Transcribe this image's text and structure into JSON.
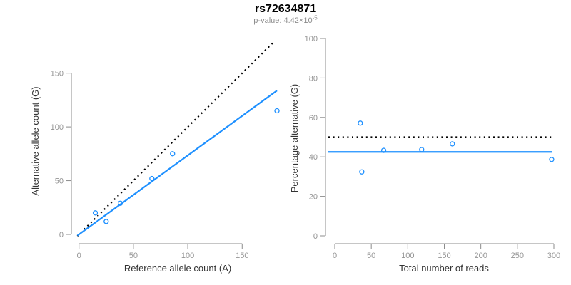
{
  "header": {
    "title": "rs72634871",
    "p_value_text": "p-value: 4.42×10",
    "p_value_exponent": "-5"
  },
  "colors": {
    "accent_blue": "#1E90FF",
    "dotted_black": "#000000",
    "axis_gray": "#8c8c8c",
    "tick_label_gray": "#949494"
  },
  "chart_data": [
    {
      "type": "scatter",
      "name": "allele-counts-scatter",
      "xlabel": "Reference allele count (A)",
      "ylabel": "Alternative allele count (G)",
      "xticks": [
        0,
        50,
        100,
        150
      ],
      "yticks": [
        0,
        50,
        100,
        150
      ],
      "xlim": [
        0,
        150
      ],
      "ylim": [
        0,
        150
      ],
      "grid": false,
      "points": [
        [
          15,
          20
        ],
        [
          25,
          12
        ],
        [
          38,
          29
        ],
        [
          67,
          52
        ],
        [
          86,
          75
        ],
        [
          182,
          115
        ]
      ],
      "lines": [
        {
          "label": "identity-line",
          "style": "dotted",
          "color": "#000000",
          "slope": 1,
          "intercept": 0
        },
        {
          "label": "fitted-line",
          "style": "solid",
          "color": "#1E90FF",
          "slope": 0.735,
          "intercept": 0
        }
      ]
    },
    {
      "type": "scatter",
      "name": "percentage-vs-reads-scatter",
      "xlabel": "Total number of reads",
      "ylabel": "Percentage alternative (G)",
      "xticks": [
        0,
        50,
        100,
        150,
        200,
        250,
        300
      ],
      "yticks": [
        0,
        20,
        40,
        60,
        80,
        100
      ],
      "xlim": [
        0,
        300
      ],
      "ylim": [
        0,
        100
      ],
      "grid": false,
      "points": [
        [
          35,
          57.1
        ],
        [
          37,
          32.4
        ],
        [
          67,
          43.3
        ],
        [
          119,
          43.7
        ],
        [
          161,
          46.6
        ],
        [
          297,
          38.7
        ]
      ],
      "lines": [
        {
          "label": "expected-50pct-line",
          "style": "dotted",
          "color": "#000000",
          "y": 50
        },
        {
          "label": "fitted-percentage-line",
          "style": "solid",
          "color": "#1E90FF",
          "y": 42.5
        }
      ]
    }
  ]
}
